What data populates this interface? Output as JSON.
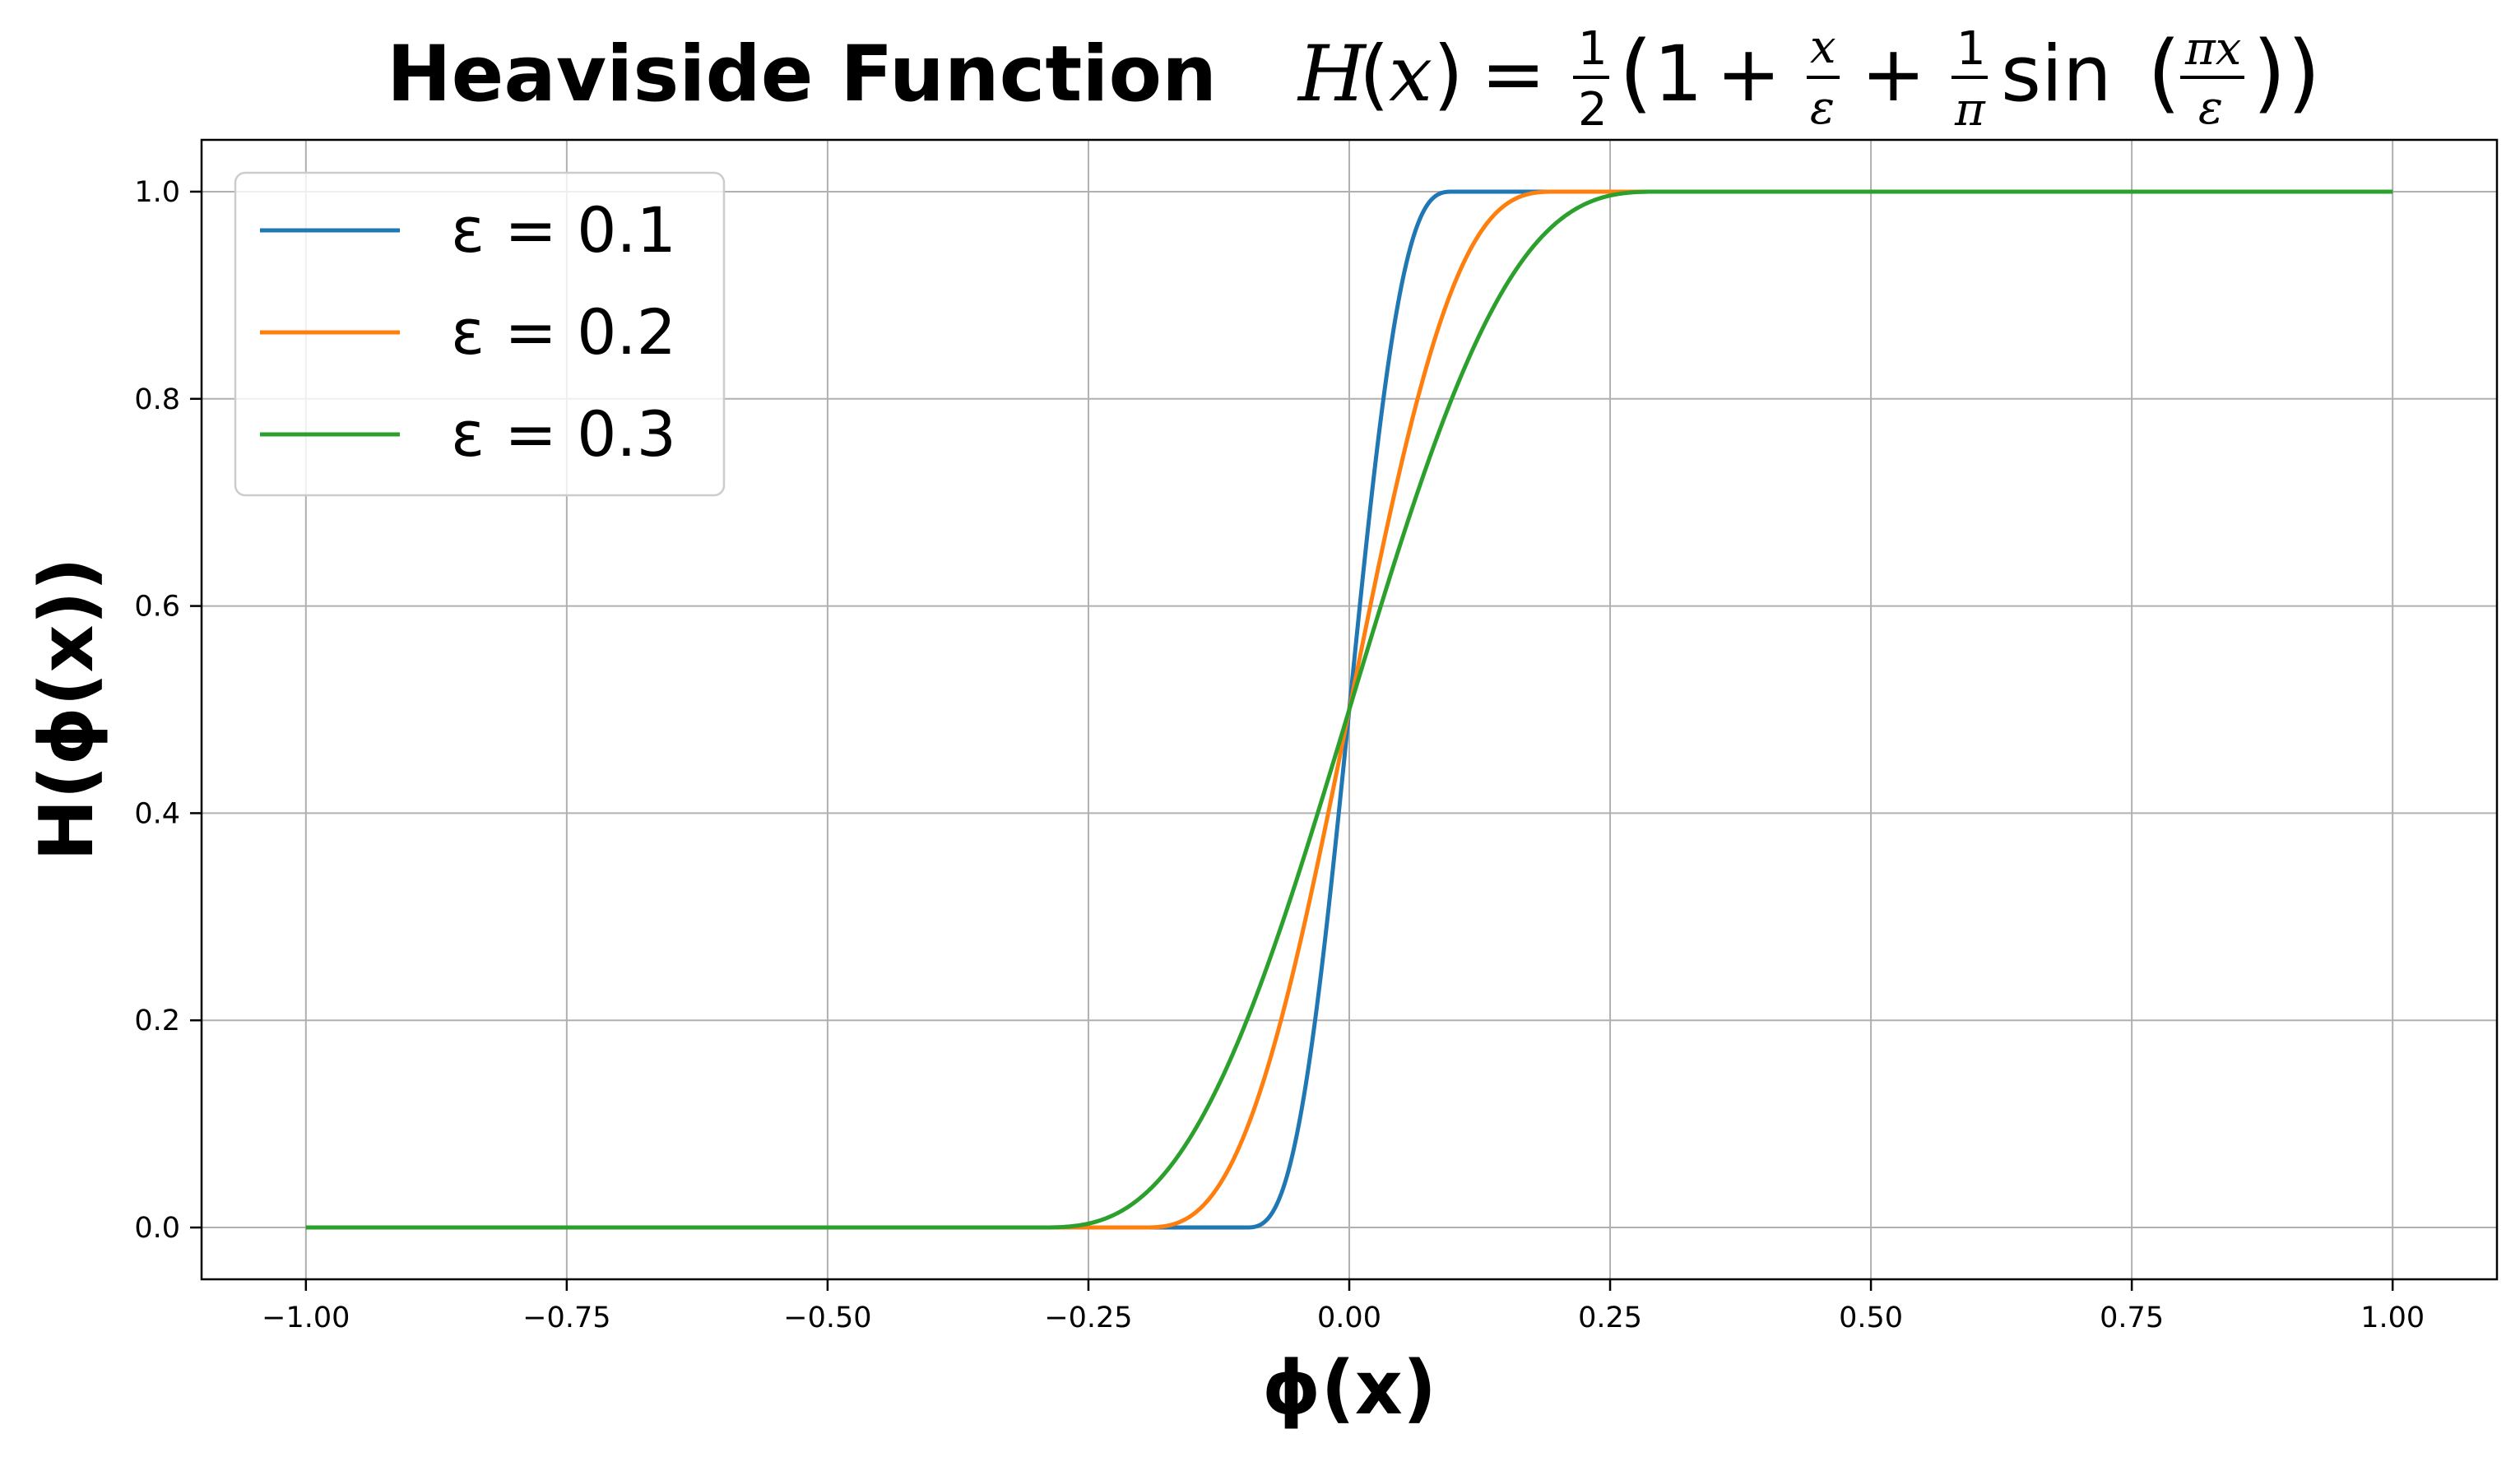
{
  "chart_data": {
    "type": "line",
    "title": "Heaviside Function",
    "title_formula": "H(x) = 1/2 (1 + x/ε + 1/π sin(πx/ε))",
    "xlabel": "ϕ(x)",
    "ylabel": "H(ϕ(x))",
    "xlim": [
      -1.1,
      1.1
    ],
    "ylim": [
      -0.05,
      1.05
    ],
    "xticks": [
      -1.0,
      -0.75,
      -0.5,
      -0.25,
      0.0,
      0.25,
      0.5,
      0.75,
      1.0
    ],
    "xtick_labels": [
      "−1.00",
      "−0.75",
      "−0.50",
      "−0.25",
      "0.00",
      "0.25",
      "0.50",
      "0.75",
      "1.00"
    ],
    "yticks": [
      0.0,
      0.2,
      0.4,
      0.6,
      0.8,
      1.0
    ],
    "ytick_labels": [
      "0.0",
      "0.2",
      "0.4",
      "0.6",
      "0.8",
      "1.0"
    ],
    "grid": true,
    "legend_position": "top-left",
    "x_domain": [
      -1.0,
      1.0
    ],
    "series": [
      {
        "name": "ε = 0.1",
        "epsilon": 0.1,
        "color": "#1f77b4",
        "x": [
          -1.0,
          -0.1,
          -0.075,
          -0.05,
          -0.025,
          0.0,
          0.025,
          0.05,
          0.075,
          0.1,
          1.0
        ],
        "y": [
          0.0,
          0.0,
          0.0125,
          0.0908,
          0.2659,
          0.5,
          0.7341,
          0.9092,
          0.9875,
          1.0,
          1.0
        ]
      },
      {
        "name": "ε = 0.2",
        "epsilon": 0.2,
        "color": "#ff7f0e",
        "x": [
          -1.0,
          -0.2,
          -0.15,
          -0.1,
          -0.05,
          0.0,
          0.05,
          0.1,
          0.15,
          0.2,
          1.0
        ],
        "y": [
          0.0,
          0.0,
          0.0125,
          0.0908,
          0.2659,
          0.5,
          0.7341,
          0.9092,
          0.9875,
          1.0,
          1.0
        ]
      },
      {
        "name": "ε = 0.3",
        "epsilon": 0.3,
        "color": "#2ca02c",
        "x": [
          -1.0,
          -0.3,
          -0.225,
          -0.15,
          -0.075,
          0.0,
          0.075,
          0.15,
          0.225,
          0.3,
          1.0
        ],
        "y": [
          0.0,
          0.0,
          0.0125,
          0.0908,
          0.2659,
          0.5,
          0.7341,
          0.9092,
          0.9875,
          1.0,
          1.0
        ]
      }
    ]
  }
}
